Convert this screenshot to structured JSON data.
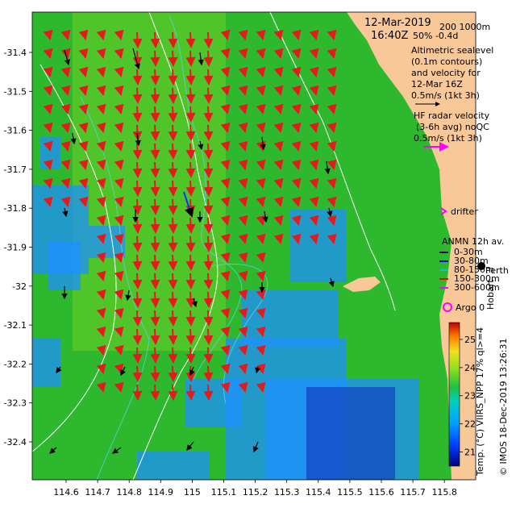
{
  "map": {
    "header": {
      "date": "12-Mar-2019",
      "time": "16:40Z",
      "depths": "200  1000m",
      "coverage": "50% -0.4d"
    },
    "altimetry_note": [
      "Altimetric sealevel",
      "(0.1m contours)",
      "and velocity for",
      "12-Mar 16Z",
      "0.5m/s (1kt 3h)"
    ],
    "hf_radar_note": [
      "HF radar velocity",
      "(3-6h avg) noQC",
      "0.5m/s (1kt 3h)"
    ],
    "drifter_label": "drifter",
    "anmn": {
      "title": "ANMN 12h av.",
      "depths": [
        "0-30m",
        "30-80m",
        "80-150m",
        "150-300m",
        "300-600m"
      ],
      "colors": [
        "#000080",
        "#0000ff",
        "#00cccc",
        "#ff0000",
        "#ff00ff"
      ]
    },
    "argo_label": "Argo 0",
    "city_label": "Perth",
    "hobart_label": "Hobart",
    "colorbar": {
      "label": "Temp. (°C) VIIRS_NPP 17% ql>=4",
      "ticks": [
        "21",
        "22",
        "23",
        "24",
        "25"
      ],
      "min": 20.5,
      "max": 25.6
    },
    "credit": "© IMOS 18-Dec-2019 13:26:31",
    "y_ticks": [
      "-31.4",
      "-31.5",
      "-31.6",
      "-31.7",
      "-31.8",
      "-31.9",
      "-32",
      "-32.1",
      "-32.2",
      "-32.3",
      "-32.4"
    ],
    "x_ticks": [
      "114.6",
      "114.7",
      "114.8",
      "114.9",
      "115",
      "115.1",
      "115.2",
      "115.3",
      "115.4",
      "115.5",
      "115.6",
      "115.7",
      "115.8"
    ],
    "colors": {
      "land": "#f8c898",
      "sst_warm": "#2db82d",
      "sst_cool": "#1e90ff",
      "radar_vec": "#e41a1c",
      "alt_vec": "#000000",
      "contour": "#5ccfe6",
      "isobath": "#ffffff"
    }
  }
}
